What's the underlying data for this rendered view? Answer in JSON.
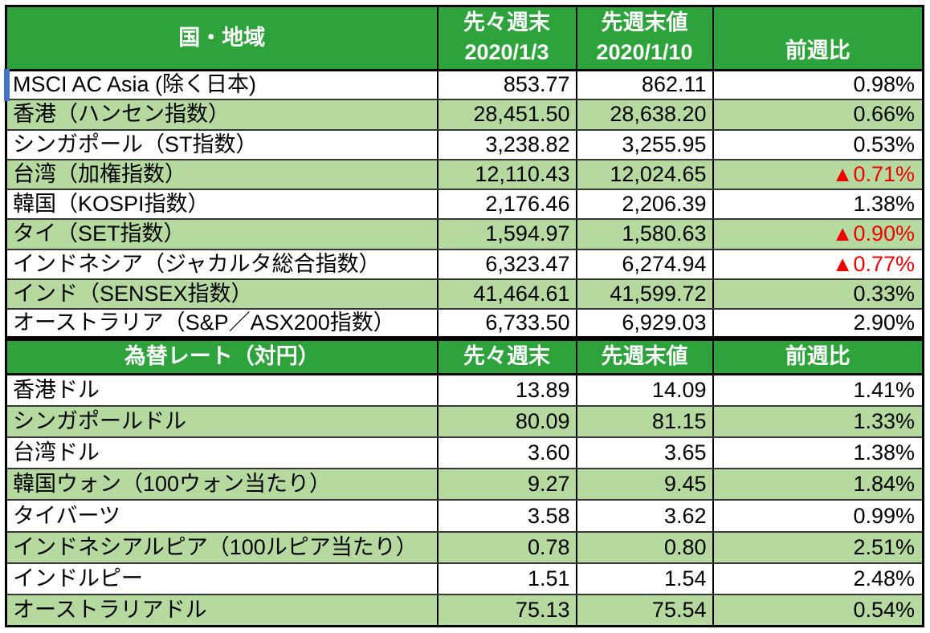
{
  "colors": {
    "header_green": "#2EA33C",
    "row_stripe_green": "#B5D99E",
    "negative_red": "#EE0000",
    "grid_black": "#000000",
    "row_divider_gray": "#373737",
    "selection_blue": "#4472C4"
  },
  "table1": {
    "header": {
      "col1": "国・地域",
      "col2_line1": "先々週末",
      "col2_line2": "2020/1/3",
      "col3_line1": "先週末値",
      "col3_line2": "2020/1/10",
      "col4": "前週比"
    },
    "rows": [
      {
        "label": "MSCI AC Asia (除く日本)",
        "prev": "853.77",
        "last": "862.11",
        "change": "0.98%",
        "negative": false
      },
      {
        "label": "香港（ハンセン指数）",
        "prev": "28,451.50",
        "last": "28,638.20",
        "change": "0.66%",
        "negative": false
      },
      {
        "label": "シンガポール（ST指数）",
        "prev": "3,238.82",
        "last": "3,255.95",
        "change": "0.53%",
        "negative": false
      },
      {
        "label": "台湾（加権指数）",
        "prev": "12,110.43",
        "last": "12,024.65",
        "change": "▲0.71%",
        "negative": true
      },
      {
        "label": "韓国（KOSPI指数）",
        "prev": "2,176.46",
        "last": "2,206.39",
        "change": "1.38%",
        "negative": false
      },
      {
        "label": "タイ（SET指数）",
        "prev": "1,594.97",
        "last": "1,580.63",
        "change": "▲0.90%",
        "negative": true
      },
      {
        "label": "インドネシア（ジャカルタ総合指数）",
        "prev": "6,323.47",
        "last": "6,274.94",
        "change": "▲0.77%",
        "negative": true
      },
      {
        "label": "インド（SENSEX指数）",
        "prev": "41,464.61",
        "last": "41,599.72",
        "change": "0.33%",
        "negative": false
      },
      {
        "label": "オーストラリア（S&P／ASX200指数）",
        "prev": "6,733.50",
        "last": "6,929.03",
        "change": "2.90%",
        "negative": false
      }
    ]
  },
  "table2": {
    "header": {
      "col1": "為替レート（対円）",
      "col2": "先々週末",
      "col3": "先週末値",
      "col4": "前週比"
    },
    "rows": [
      {
        "label": "香港ドル",
        "prev": "13.89",
        "last": "14.09",
        "change": "1.41%",
        "negative": false
      },
      {
        "label": "シンガポールドル",
        "prev": "80.09",
        "last": "81.15",
        "change": "1.33%",
        "negative": false
      },
      {
        "label": "台湾ドル",
        "prev": "3.60",
        "last": "3.65",
        "change": "1.38%",
        "negative": false
      },
      {
        "label": "韓国ウォン（100ウォン当たり）",
        "prev": "9.27",
        "last": "9.45",
        "change": "1.84%",
        "negative": false
      },
      {
        "label": "タイバーツ",
        "prev": "3.58",
        "last": "3.62",
        "change": "0.99%",
        "negative": false
      },
      {
        "label": "インドネシアルピア（100ルピア当たり）",
        "prev": "0.78",
        "last": "0.80",
        "change": "2.51%",
        "negative": false
      },
      {
        "label": "インドルピー",
        "prev": "1.51",
        "last": "1.54",
        "change": "2.48%",
        "negative": false
      },
      {
        "label": "オーストラリアドル",
        "prev": "75.13",
        "last": "75.54",
        "change": "0.54%",
        "negative": false
      }
    ]
  }
}
